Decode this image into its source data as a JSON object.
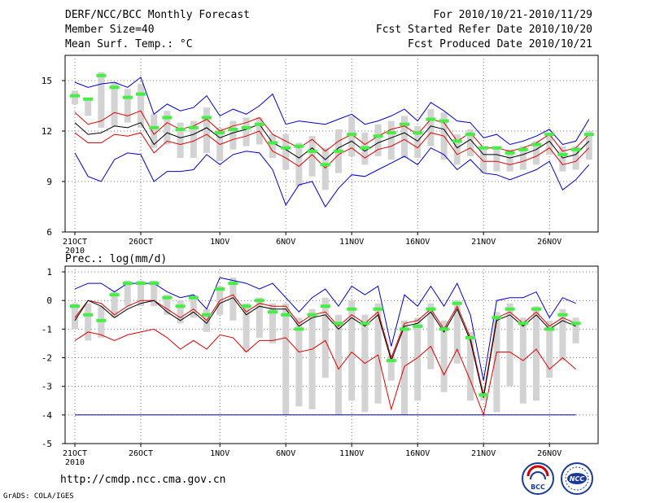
{
  "header": {
    "title": "DERF/NCC/BCC Monthly Forecast",
    "member_size": "Member Size=40",
    "variable": "Mean Surf. Temp.: °C",
    "forecast_period": "For 2010/10/21-2010/11/29",
    "started_refer": "Fcst Started Refer Date 2010/10/20",
    "produced": "Fcst Produced Date 2010/10/21"
  },
  "footer": {
    "url": "http://cmdp.ncc.cma.gov.cn",
    "credit": "GrADS: COLA/IGES",
    "logo1_text": "BCC",
    "logo2_text": "NCC"
  },
  "colors": {
    "box": "#d3d3d3",
    "median": "#44ee44",
    "mean": "#000000",
    "spread": "#e00000",
    "extreme": "#0000cc"
  },
  "chart_data": [
    {
      "type": "line",
      "title": "",
      "ylabel": "Mean Surf. Temp.: °C",
      "ylim": [
        6,
        16.5
      ],
      "yticks": [
        6,
        9,
        12,
        15
      ],
      "xlim": [
        0,
        39
      ],
      "xtick_labels": [
        "21OCT",
        "26OCT",
        "1NOV",
        "6NOV",
        "11NOV",
        "16NOV",
        "21NOV",
        "26NOV"
      ],
      "xtick_positions": [
        0,
        5,
        11,
        16,
        21,
        26,
        31,
        36
      ],
      "year_label": "2010",
      "series": [
        {
          "name": "median",
          "values": [
            14.1,
            13.9,
            15.3,
            14.6,
            14.0,
            14.2,
            12.2,
            12.8,
            12.1,
            12.2,
            12.8,
            11.9,
            12.1,
            12.2,
            12.4,
            11.3,
            11.0,
            11.1,
            10.8,
            10.0,
            10.8,
            11.8,
            11.0,
            11.7,
            11.9,
            12.4,
            11.9,
            12.7,
            12.6,
            11.4,
            11.8,
            11.0,
            11.0,
            10.7,
            10.9,
            11.2,
            11.8,
            10.6,
            10.9,
            11.8
          ]
        },
        {
          "name": "mean",
          "values": [
            12.5,
            11.8,
            11.9,
            12.3,
            12.2,
            12.5,
            11.2,
            11.9,
            11.6,
            11.8,
            12.2,
            11.6,
            11.9,
            12.1,
            12.4,
            11.3,
            10.9,
            10.4,
            11.0,
            10.3,
            11.0,
            11.4,
            10.8,
            11.3,
            11.6,
            11.9,
            11.4,
            12.3,
            12.1,
            11.0,
            11.5,
            10.6,
            10.6,
            10.4,
            10.6,
            10.9,
            11.4,
            10.4,
            10.6,
            11.4
          ]
        },
        {
          "name": "upper_sd",
          "values": [
            13.1,
            12.4,
            12.6,
            13.1,
            12.9,
            13.2,
            11.8,
            12.5,
            12.1,
            12.3,
            12.7,
            12.0,
            12.3,
            12.5,
            12.8,
            11.8,
            11.4,
            11.0,
            11.5,
            10.8,
            11.4,
            11.8,
            11.2,
            11.7,
            12.1,
            12.3,
            11.8,
            12.7,
            12.5,
            11.4,
            11.9,
            11.0,
            11.0,
            10.8,
            11.0,
            11.3,
            11.8,
            10.8,
            11.0,
            11.8
          ]
        },
        {
          "name": "lower_sd",
          "values": [
            11.9,
            11.3,
            11.3,
            11.8,
            11.7,
            11.9,
            10.7,
            11.4,
            11.2,
            11.4,
            11.8,
            11.2,
            11.5,
            11.7,
            12.0,
            10.8,
            10.4,
            9.9,
            10.6,
            9.8,
            10.6,
            11.0,
            10.4,
            10.9,
            11.1,
            11.5,
            11.0,
            11.9,
            11.7,
            10.6,
            11.0,
            10.2,
            10.2,
            10.0,
            10.2,
            10.5,
            11.0,
            10.0,
            10.2,
            11.0
          ]
        },
        {
          "name": "max",
          "values": [
            14.9,
            14.6,
            14.8,
            14.9,
            14.6,
            15.2,
            13.0,
            13.6,
            13.2,
            13.4,
            14.1,
            12.9,
            13.3,
            13.0,
            13.5,
            14.2,
            12.4,
            12.6,
            12.5,
            12.4,
            12.7,
            13.0,
            12.4,
            12.6,
            12.9,
            13.3,
            12.6,
            13.7,
            13.2,
            12.6,
            12.5,
            11.6,
            11.8,
            11.2,
            11.4,
            11.7,
            12.1,
            11.2,
            11.4,
            12.7
          ]
        },
        {
          "name": "min",
          "values": [
            10.7,
            9.3,
            9.0,
            10.3,
            10.7,
            10.6,
            9.0,
            9.6,
            9.6,
            9.7,
            10.6,
            10.0,
            10.6,
            10.8,
            10.7,
            9.7,
            7.6,
            8.8,
            9.0,
            7.5,
            8.6,
            9.4,
            9.3,
            9.7,
            10.1,
            10.5,
            10.0,
            11.0,
            10.6,
            9.7,
            10.3,
            9.5,
            9.4,
            9.1,
            9.4,
            9.7,
            10.2,
            8.5,
            9.1,
            10.0
          ]
        },
        {
          "name": "box_high",
          "values": [
            14.4,
            14.0,
            15.5,
            14.9,
            14.5,
            14.8,
            13.0,
            13.2,
            12.5,
            12.6,
            13.4,
            12.2,
            12.6,
            12.8,
            12.8,
            11.8,
            11.8,
            11.3,
            11.7,
            11.0,
            12.1,
            12.9,
            11.9,
            12.4,
            12.6,
            12.9,
            12.3,
            13.3,
            13.1,
            11.8,
            12.1,
            11.1,
            11.0,
            10.9,
            11.1,
            11.4,
            11.9,
            11.1,
            11.1,
            12.0
          ]
        },
        {
          "name": "box_low",
          "values": [
            13.6,
            12.9,
            12.2,
            12.3,
            12.5,
            12.2,
            11.0,
            11.2,
            10.4,
            10.4,
            10.7,
            10.2,
            10.9,
            11.1,
            11.2,
            10.4,
            9.7,
            8.7,
            9.3,
            8.5,
            9.5,
            10.5,
            10.0,
            10.5,
            10.3,
            10.4,
            10.4,
            11.1,
            10.3,
            10.0,
            10.5,
            9.5,
            9.6,
            9.6,
            9.7,
            10.0,
            10.6,
            9.6,
            9.7,
            10.3
          ]
        }
      ]
    },
    {
      "type": "line",
      "title": "Prec.: log(mm/d)",
      "ylim": [
        -5,
        1.2
      ],
      "yticks": [
        -5,
        -4,
        -3,
        -2,
        -1,
        0,
        1
      ],
      "xlim": [
        0,
        39
      ],
      "xtick_labels": [
        "21OCT",
        "26OCT",
        "1NOV",
        "6NOV",
        "11NOV",
        "16NOV",
        "21NOV",
        "26NOV"
      ],
      "xtick_positions": [
        0,
        5,
        11,
        16,
        21,
        26,
        31,
        36
      ],
      "year_label": "2010",
      "series": [
        {
          "name": "median",
          "values": [
            -0.2,
            -0.5,
            -0.7,
            0.2,
            0.6,
            0.6,
            0.6,
            0.1,
            -0.2,
            0.1,
            -0.5,
            0.4,
            0.6,
            -0.2,
            0.0,
            -0.4,
            -0.5,
            -1.0,
            -0.5,
            -0.2,
            -0.8,
            -0.3,
            -0.8,
            -0.3,
            -2.1,
            -1.0,
            -0.9,
            -0.3,
            -1.0,
            -0.1,
            -1.3,
            -3.3,
            -0.6,
            -0.3,
            -0.8,
            -0.3,
            -1.0,
            -0.5,
            -0.8
          ]
        },
        {
          "name": "mean",
          "values": [
            -0.7,
            0.0,
            -0.2,
            -0.6,
            -0.3,
            -0.1,
            0.0,
            -0.4,
            -0.7,
            -0.4,
            -0.8,
            -0.1,
            0.1,
            -0.5,
            -0.2,
            -0.3,
            -0.3,
            -0.9,
            -0.6,
            -0.5,
            -1.0,
            -0.6,
            -0.9,
            -0.5,
            -2.1,
            -0.9,
            -0.8,
            -0.4,
            -1.1,
            -0.3,
            -1.4,
            -3.4,
            -0.7,
            -0.5,
            -0.9,
            -0.5,
            -1.0,
            -0.7,
            -0.9
          ]
        },
        {
          "name": "upper_sd",
          "values": [
            -0.6,
            0.0,
            -0.1,
            -0.5,
            -0.2,
            0.0,
            0.0,
            -0.3,
            -0.6,
            -0.3,
            -0.7,
            0.0,
            0.2,
            -0.4,
            -0.1,
            -0.2,
            -0.2,
            -0.8,
            -0.5,
            -0.4,
            -0.9,
            -0.5,
            -0.8,
            -0.4,
            -2.0,
            -0.8,
            -0.7,
            -0.3,
            -1.0,
            -0.2,
            -1.3,
            -3.3,
            -0.6,
            -0.4,
            -0.8,
            -0.4,
            -0.9,
            -0.6,
            -0.8
          ]
        },
        {
          "name": "lower_sd",
          "values": [
            -1.4,
            -1.1,
            -1.2,
            -1.4,
            -1.2,
            -1.1,
            -1.0,
            -1.3,
            -1.7,
            -1.4,
            -1.7,
            -1.2,
            -1.3,
            -1.8,
            -1.4,
            -1.4,
            -1.3,
            -1.8,
            -1.7,
            -1.4,
            -2.4,
            -1.8,
            -2.2,
            -1.9,
            -3.8,
            -2.3,
            -2.0,
            -1.6,
            -2.6,
            -1.7,
            -2.8,
            -4.0,
            -1.8,
            -1.8,
            -2.1,
            -1.7,
            -2.4,
            -2.0,
            -2.4
          ]
        },
        {
          "name": "max",
          "values": [
            0.4,
            0.6,
            0.6,
            0.3,
            0.6,
            0.6,
            0.6,
            0.3,
            0.1,
            0.2,
            -0.3,
            0.8,
            0.7,
            0.6,
            0.4,
            0.6,
            0.1,
            -0.4,
            0.1,
            0.4,
            -0.2,
            0.5,
            0.2,
            0.5,
            -1.6,
            0.2,
            -0.2,
            0.5,
            -0.2,
            0.6,
            -0.5,
            -2.8,
            0.0,
            0.1,
            0.1,
            0.3,
            -0.6,
            0.1,
            -0.1
          ]
        },
        {
          "name": "min",
          "values": [
            -4.0,
            -4.0,
            -4.0,
            -4.0,
            -4.0,
            -4.0,
            -4.0,
            -4.0,
            -4.0,
            -4.0,
            -4.0,
            -4.0,
            -4.0,
            -4.0,
            -4.0,
            -4.0,
            -4.0,
            -4.0,
            -4.0,
            -4.0,
            -4.0,
            -4.0,
            -4.0,
            -4.0,
            -4.0,
            -4.0,
            -4.0,
            -4.0,
            -4.0,
            -4.0,
            -4.0,
            -4.0,
            -4.0,
            -4.0,
            -4.0,
            -4.0,
            -4.0,
            -4.0,
            -4.0
          ]
        },
        {
          "name": "box_high",
          "values": [
            -0.1,
            -0.1,
            -0.2,
            0.3,
            0.7,
            0.7,
            0.7,
            0.2,
            0.0,
            0.2,
            -0.3,
            0.5,
            0.8,
            -0.1,
            0.1,
            -0.1,
            -0.1,
            -0.6,
            -0.3,
            0.1,
            -0.5,
            0.0,
            -0.5,
            -0.1,
            -1.9,
            -0.7,
            -0.6,
            -0.1,
            -0.7,
            0.0,
            -1.1,
            -3.2,
            -0.4,
            -0.1,
            -0.6,
            -0.2,
            -0.7,
            -0.3,
            -0.6
          ]
        },
        {
          "name": "box_low",
          "values": [
            -1.0,
            -1.4,
            -1.3,
            -0.6,
            -0.2,
            -0.2,
            -0.2,
            -0.5,
            -0.8,
            -0.6,
            -1.1,
            -0.5,
            -0.7,
            -1.8,
            -1.3,
            -1.5,
            -4.0,
            -3.7,
            -3.8,
            -2.7,
            -4.0,
            -3.5,
            -3.9,
            -3.6,
            -2.8,
            -4.0,
            -3.5,
            -2.4,
            -3.2,
            -2.2,
            -3.5,
            -3.5,
            -3.9,
            -3.0,
            -3.6,
            -3.5,
            -2.7,
            -2.1,
            -1.5
          ]
        }
      ]
    }
  ]
}
